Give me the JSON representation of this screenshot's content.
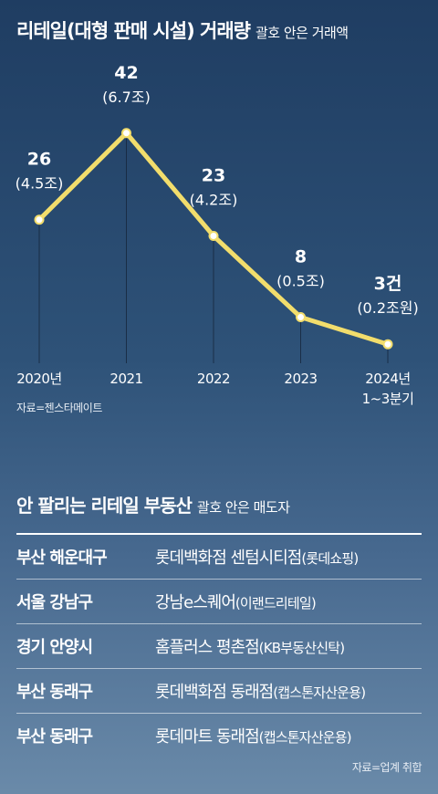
{
  "header": {
    "title": "리테일(대형 판매 시설) 거래량",
    "subtitle": "괄호 안은 거래액"
  },
  "chart_data": {
    "type": "line",
    "categories": [
      "2020년",
      "2021",
      "2022",
      "2023",
      "2024년"
    ],
    "category_sublabels": [
      "",
      "",
      "",
      "",
      "1~3분기"
    ],
    "values": [
      26,
      42,
      23,
      8,
      3
    ],
    "value_labels": [
      "26",
      "42",
      "23",
      "8",
      "3건"
    ],
    "amount_labels": [
      "(4.5조)",
      "(6.7조)",
      "(4.2조)",
      "(0.5조)",
      "(0.2조원)"
    ],
    "ylim": [
      0,
      45
    ],
    "line_color": "#f2dd6c",
    "grid": false
  },
  "chart_source": "자료=젠스타메이트",
  "table": {
    "title": "안 팔리는 리테일 부동산",
    "subtitle": "괄호 안은 매도자",
    "rows": [
      {
        "region": "부산 해운대구",
        "property": "롯데백화점 센텀시티점",
        "seller": "(롯데쇼핑)"
      },
      {
        "region": "서울 강남구",
        "property": "강남e스퀘어",
        "seller": "(이랜드리테일)"
      },
      {
        "region": "경기 안양시",
        "property": "홈플러스 평촌점",
        "seller": "(KB부동산신탁)"
      },
      {
        "region": "부산 동래구",
        "property": "롯데백화점 동래점",
        "seller": "(캡스톤자산운용)"
      },
      {
        "region": "부산 동래구",
        "property": "롯데마트 동래점",
        "seller": "(캡스톤자산운용)"
      }
    ]
  },
  "table_source": "자료=업계 취합"
}
